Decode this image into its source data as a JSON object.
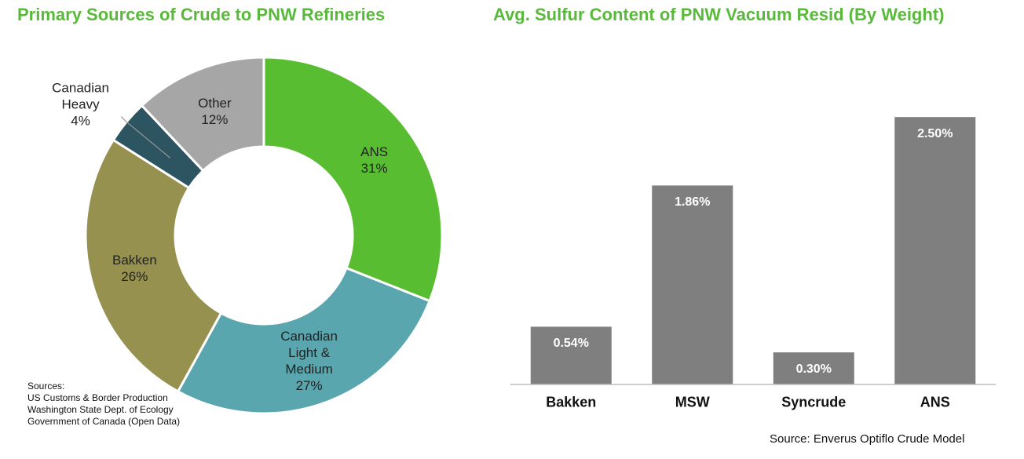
{
  "chart_data": [
    {
      "type": "pie",
      "title": "Primary Sources of Crude to PNW Refineries",
      "categories": [
        "ANS",
        "Canadian\nLight &\nMedium",
        "Bakken",
        "Canadian\nHeavy",
        "Other"
      ],
      "values": [
        31,
        27,
        26,
        4,
        12
      ],
      "value_labels": [
        "31%",
        "27%",
        "26%",
        "4%",
        "12%"
      ],
      "colors": [
        "#59bd32",
        "#5aa6ae",
        "#979150",
        "#2c5461",
        "#a6a6a6"
      ],
      "annotation": "Sources:\nUS Customs & Border Production\nWashington State Dept. of Ecology\nGovernment of Canada (Open Data)"
    },
    {
      "type": "bar",
      "title": "Avg. Sulfur Content of PNW Vacuum Resid (By Weight)",
      "categories": [
        "Bakken",
        "MSW",
        "Syncrude",
        "ANS"
      ],
      "values": [
        0.54,
        1.86,
        0.3,
        2.5
      ],
      "value_labels": [
        "0.54%",
        "1.86%",
        "0.30%",
        "2.50%"
      ],
      "color": "#7f7f7f",
      "ylim": [
        0,
        3
      ],
      "annotation": "Source: Enverus Optiflo Crude Model"
    }
  ]
}
